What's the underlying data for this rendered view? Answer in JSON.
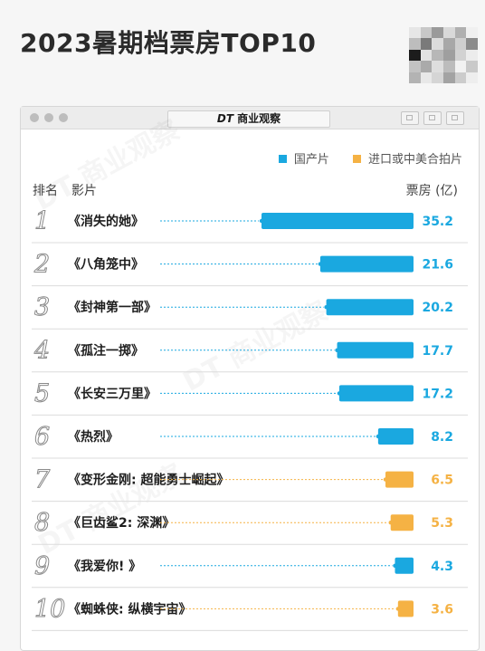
{
  "page_title": "2023暑期档票房TOP10",
  "window": {
    "brand_mark": "DT",
    "brand_name": "商业观察"
  },
  "chart_data": {
    "type": "bar",
    "title": "2023暑期档票房TOP10",
    "header": {
      "rank": "排名",
      "film": "影片",
      "value": "票房 (亿)"
    },
    "legend": [
      {
        "name": "国产片",
        "color": "#1aa8e0"
      },
      {
        "name": "进口或中美合拍片",
        "color": "#f5b244"
      }
    ],
    "legend_position": "top-right",
    "orientation": "horizontal, right-aligned",
    "grid": false,
    "ranks": [
      "1",
      "2",
      "3",
      "4",
      "5",
      "6",
      "7",
      "8",
      "9",
      "10"
    ],
    "categories": [
      "《消失的她》",
      "《八角笼中》",
      "《封神第一部》",
      "《孤注一掷》",
      "《长安三万里》",
      "《热烈》",
      "《变形金刚: 超能勇士崛起》",
      "《巨齿鲨2: 深渊》",
      "《我爱你! 》",
      "《蜘蛛侠: 纵横宇宙》"
    ],
    "values": [
      35.2,
      21.6,
      20.2,
      17.7,
      17.2,
      8.2,
      6.5,
      5.3,
      4.3,
      3.6
    ],
    "value_labels": [
      "35.2",
      "21.6",
      "20.2",
      "17.7",
      "17.2",
      "8.2",
      "6.5",
      "5.3",
      "4.3",
      "3.6"
    ],
    "groups": [
      "国产片",
      "国产片",
      "国产片",
      "国产片",
      "国产片",
      "国产片",
      "进口或中美合拍片",
      "进口或中美合拍片",
      "国产片",
      "进口或中美合拍片"
    ],
    "xlim": [
      0,
      35.2
    ]
  }
}
